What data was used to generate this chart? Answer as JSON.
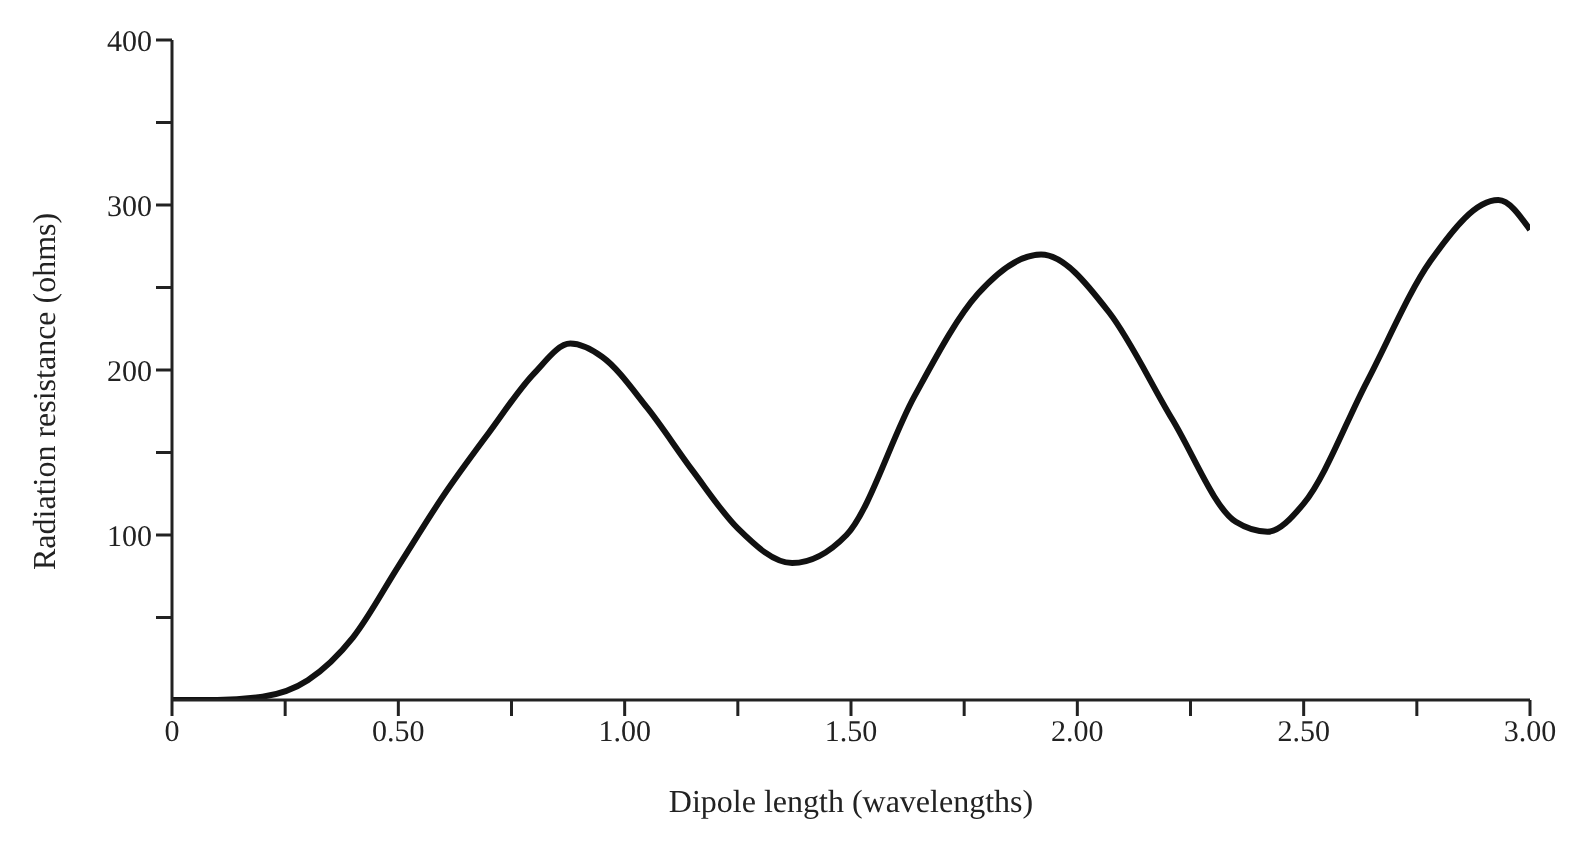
{
  "chart_data": {
    "type": "line",
    "xlabel": "Dipole length (wavelengths)",
    "ylabel": "Radiation resistance (ohms)",
    "x": [
      0,
      0.1,
      0.2,
      0.3,
      0.4,
      0.5,
      0.6,
      0.7,
      0.8,
      0.88,
      0.95,
      1.05,
      1.15,
      1.25,
      1.37,
      1.49,
      1.64,
      1.78,
      1.92,
      2.07,
      2.21,
      2.35,
      2.42,
      2.5,
      2.64,
      2.78,
      2.93,
      3.0
    ],
    "series": [
      {
        "color": "#111111",
        "values": [
          0,
          0,
          2,
          12,
          38,
          81,
          124,
          162,
          198,
          216,
          208,
          177,
          139,
          104,
          83,
          100,
          184,
          246,
          270,
          235,
          170,
          108,
          102,
          119,
          193,
          266,
          303,
          285
        ]
      }
    ],
    "xlim": [
      0,
      3
    ],
    "xticks": [
      0,
      {
        "value": 0.25,
        "label": null
      },
      {
        "value": 0.5,
        "label": "0.50"
      },
      {
        "value": 0.75,
        "label": null
      },
      {
        "value": 1,
        "label": "1.00"
      },
      {
        "value": 1.25,
        "label": null
      },
      {
        "value": 1.5,
        "label": "1.50"
      },
      {
        "value": 1.75,
        "label": null
      },
      {
        "value": 2,
        "label": "2.00"
      },
      {
        "value": 2.25,
        "label": null
      },
      {
        "value": 2.5,
        "label": "2.50"
      },
      {
        "value": 2.75,
        "label": null
      },
      {
        "value": 3,
        "label": "3.00"
      }
    ],
    "ylim": [
      0,
      400
    ],
    "yticks": [
      {
        "value": 50,
        "label": null
      },
      100,
      {
        "value": 150,
        "label": null
      },
      200,
      {
        "value": 250,
        "label": null
      },
      300,
      {
        "value": 350,
        "label": null
      },
      400
    ],
    "grid": false,
    "legend": false,
    "marker": "none",
    "line_style": "solid"
  }
}
